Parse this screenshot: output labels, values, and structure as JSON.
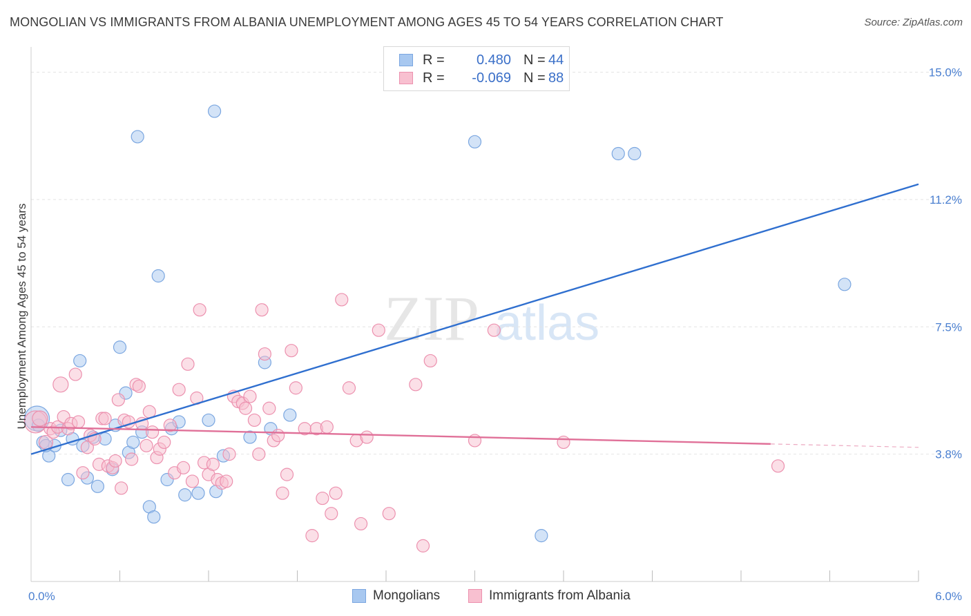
{
  "title": "MONGOLIAN VS IMMIGRANTS FROM ALBANIA UNEMPLOYMENT AMONG AGES 45 TO 54 YEARS CORRELATION CHART",
  "source": "Source: ZipAtlas.com",
  "watermark": {
    "zip": "ZIP",
    "atlas": "atlas"
  },
  "legend_top": {
    "rows": [
      {
        "r_label": "R =",
        "r_value": "0.480",
        "n_label": "N =",
        "n_value": "44",
        "color": "#a8c8f0",
        "border": "#7aa6e0"
      },
      {
        "r_label": "R =",
        "r_value": "-0.069",
        "n_label": "N =",
        "n_value": "88",
        "color": "#f8c0d0",
        "border": "#ec90ae"
      }
    ]
  },
  "legend_bottom": [
    {
      "label": "Mongolians",
      "color": "#a8c8f0",
      "border": "#7aa6e0"
    },
    {
      "label": "Immigrants from Albania",
      "color": "#f8c0d0",
      "border": "#ec90ae"
    }
  ],
  "chart_data": {
    "type": "scatter",
    "title": "MONGOLIAN VS IMMIGRANTS FROM ALBANIA UNEMPLOYMENT AMONG AGES 45 TO 54 YEARS CORRELATION CHART",
    "xlabel": "",
    "ylabel": "Unemployment Among Ages 45 to 54 years",
    "xlim": [
      0,
      6
    ],
    "ylim": [
      0,
      15.6
    ],
    "x_tick_labels": [
      {
        "value": 0,
        "label": "0.0%"
      },
      {
        "value": 6,
        "label": "6.0%"
      }
    ],
    "y_tick_labels": [
      {
        "value": 3.75,
        "label": "3.8%"
      },
      {
        "value": 7.5,
        "label": "7.5%"
      },
      {
        "value": 11.25,
        "label": "11.2%"
      },
      {
        "value": 15.0,
        "label": "15.0%"
      }
    ],
    "grid": "horizontal-dashed",
    "legend_position": "top-center",
    "series": [
      {
        "name": "Mongolians",
        "color": "#a8c8f0",
        "edge": "#7aa6e0",
        "r": "0.480",
        "n": "44",
        "trend": {
          "x": [
            0,
            6
          ],
          "y": [
            3.75,
            11.7
          ],
          "color": "#2f6fcf"
        },
        "points": [
          [
            0.04,
            4.8,
            18
          ],
          [
            0.08,
            4.1,
            9
          ],
          [
            0.12,
            3.7,
            9
          ],
          [
            0.16,
            4.0,
            9
          ],
          [
            0.2,
            4.45,
            9
          ],
          [
            0.25,
            3.0,
            9
          ],
          [
            0.28,
            4.2,
            9
          ],
          [
            0.33,
            6.5,
            9
          ],
          [
            0.38,
            3.05,
            9
          ],
          [
            0.42,
            4.25,
            9
          ],
          [
            0.45,
            2.8,
            9
          ],
          [
            0.5,
            4.2,
            9
          ],
          [
            0.55,
            3.3,
            9
          ],
          [
            0.57,
            4.6,
            9
          ],
          [
            0.6,
            6.9,
            9
          ],
          [
            0.64,
            5.55,
            9
          ],
          [
            0.66,
            3.8,
            9
          ],
          [
            0.69,
            4.1,
            9
          ],
          [
            0.72,
            13.1,
            9
          ],
          [
            0.75,
            4.4,
            9
          ],
          [
            0.8,
            2.2,
            9
          ],
          [
            0.86,
            9.0,
            9
          ],
          [
            0.83,
            1.9,
            9
          ],
          [
            0.92,
            3.0,
            9
          ],
          [
            0.95,
            4.5,
            9
          ],
          [
            1.0,
            4.7,
            9
          ],
          [
            1.04,
            2.55,
            9
          ],
          [
            1.13,
            2.6,
            9
          ],
          [
            1.2,
            4.75,
            9
          ],
          [
            1.25,
            2.65,
            9
          ],
          [
            1.3,
            3.7,
            9
          ],
          [
            1.24,
            13.85,
            9
          ],
          [
            1.48,
            4.25,
            9
          ],
          [
            1.58,
            6.45,
            9
          ],
          [
            1.62,
            4.5,
            9
          ],
          [
            1.75,
            4.9,
            9
          ],
          [
            3.0,
            12.95,
            9
          ],
          [
            3.45,
            1.35,
            9
          ],
          [
            3.97,
            12.6,
            9
          ],
          [
            4.08,
            12.6,
            9
          ],
          [
            5.5,
            8.75,
            9
          ],
          [
            0.1,
            4.0,
            9
          ],
          [
            0.35,
            4.0,
            9
          ],
          [
            0.05,
            4.6,
            9
          ]
        ]
      },
      {
        "name": "Immigrants from Albania",
        "color": "#f8c0d0",
        "edge": "#ec90ae",
        "r": "-0.069",
        "n": "88",
        "trend": {
          "x": [
            0,
            5.0
          ],
          "y": [
            4.55,
            4.05
          ],
          "color": "#e07098",
          "dashed_to": [
            5.0,
            6.0
          ],
          "dashed_y": [
            4.05,
            3.95
          ]
        },
        "points": [
          [
            0.03,
            4.7,
            16
          ],
          [
            0.06,
            4.8,
            11
          ],
          [
            0.1,
            4.1,
            10
          ],
          [
            0.13,
            4.5,
            9
          ],
          [
            0.15,
            4.4,
            9
          ],
          [
            0.18,
            4.55,
            9
          ],
          [
            0.2,
            5.8,
            11
          ],
          [
            0.22,
            4.85,
            9
          ],
          [
            0.25,
            4.5,
            9
          ],
          [
            0.27,
            4.65,
            9
          ],
          [
            0.3,
            6.1,
            9
          ],
          [
            0.32,
            4.7,
            9
          ],
          [
            0.35,
            3.2,
            9
          ],
          [
            0.38,
            3.95,
            9
          ],
          [
            0.4,
            4.3,
            9
          ],
          [
            0.43,
            4.2,
            9
          ],
          [
            0.46,
            3.45,
            9
          ],
          [
            0.48,
            4.8,
            9
          ],
          [
            0.5,
            4.8,
            9
          ],
          [
            0.52,
            3.4,
            9
          ],
          [
            0.55,
            3.35,
            9
          ],
          [
            0.57,
            3.55,
            9
          ],
          [
            0.59,
            5.35,
            9
          ],
          [
            0.61,
            2.75,
            9
          ],
          [
            0.63,
            4.75,
            9
          ],
          [
            0.66,
            4.7,
            9
          ],
          [
            0.68,
            3.6,
            9
          ],
          [
            0.71,
            5.8,
            9
          ],
          [
            0.73,
            5.75,
            9
          ],
          [
            0.75,
            4.65,
            9
          ],
          [
            0.78,
            4.0,
            9
          ],
          [
            0.8,
            5.0,
            9
          ],
          [
            0.82,
            4.4,
            9
          ],
          [
            0.85,
            3.65,
            9
          ],
          [
            0.87,
            3.9,
            9
          ],
          [
            0.9,
            4.1,
            9
          ],
          [
            0.94,
            4.6,
            9
          ],
          [
            0.97,
            3.2,
            9
          ],
          [
            1.0,
            5.65,
            9
          ],
          [
            1.03,
            3.35,
            9
          ],
          [
            1.06,
            6.4,
            9
          ],
          [
            1.09,
            2.95,
            9
          ],
          [
            1.12,
            5.4,
            9
          ],
          [
            1.14,
            8.0,
            9
          ],
          [
            1.17,
            3.5,
            9
          ],
          [
            1.2,
            3.15,
            9
          ],
          [
            1.23,
            3.45,
            9
          ],
          [
            1.26,
            3.0,
            9
          ],
          [
            1.29,
            2.9,
            9
          ],
          [
            1.32,
            2.95,
            9
          ],
          [
            1.34,
            3.75,
            9
          ],
          [
            1.37,
            5.45,
            9
          ],
          [
            1.4,
            5.3,
            9
          ],
          [
            1.43,
            5.25,
            9
          ],
          [
            1.45,
            5.1,
            9
          ],
          [
            1.48,
            5.45,
            9
          ],
          [
            1.51,
            4.75,
            9
          ],
          [
            1.54,
            3.75,
            9
          ],
          [
            1.56,
            8.0,
            9
          ],
          [
            1.58,
            6.7,
            9
          ],
          [
            1.61,
            5.1,
            9
          ],
          [
            1.64,
            4.15,
            9
          ],
          [
            1.67,
            4.3,
            9
          ],
          [
            1.7,
            2.6,
            9
          ],
          [
            1.73,
            3.15,
            9
          ],
          [
            1.76,
            6.8,
            9
          ],
          [
            1.79,
            5.7,
            9
          ],
          [
            1.85,
            4.5,
            9
          ],
          [
            1.9,
            1.35,
            9
          ],
          [
            1.93,
            4.5,
            9
          ],
          [
            1.97,
            2.45,
            9
          ],
          [
            2.0,
            4.55,
            9
          ],
          [
            2.03,
            2.0,
            9
          ],
          [
            2.06,
            2.6,
            9
          ],
          [
            2.1,
            8.3,
            9
          ],
          [
            2.15,
            5.7,
            9
          ],
          [
            2.2,
            4.15,
            9
          ],
          [
            2.23,
            1.7,
            9
          ],
          [
            2.27,
            4.25,
            9
          ],
          [
            2.35,
            7.4,
            9
          ],
          [
            2.42,
            2.0,
            9
          ],
          [
            2.6,
            5.8,
            9
          ],
          [
            2.65,
            1.05,
            9
          ],
          [
            2.7,
            6.5,
            9
          ],
          [
            3.0,
            4.15,
            9
          ],
          [
            3.13,
            7.4,
            9
          ],
          [
            3.6,
            4.1,
            9
          ],
          [
            5.05,
            3.4,
            9
          ]
        ]
      }
    ]
  }
}
